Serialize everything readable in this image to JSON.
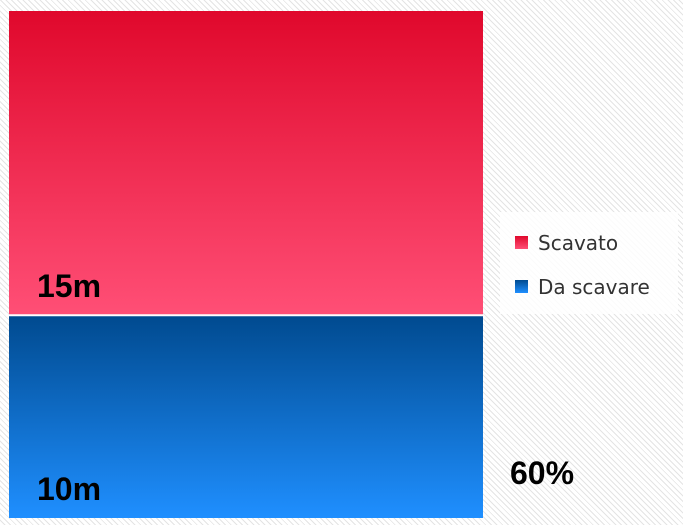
{
  "chart_data": {
    "type": "bar",
    "stacked": true,
    "orientation": "vertical",
    "categories": [
      ""
    ],
    "series": [
      {
        "name": "Scavato",
        "values": [
          15
        ],
        "label": "15m",
        "color_top": "#e0082c",
        "color_bottom": "#ff4f76"
      },
      {
        "name": "Da scavare",
        "values": [
          10
        ],
        "label": "10m",
        "color_top": "#004a8f",
        "color_bottom": "#1f8fff"
      }
    ],
    "total": 25,
    "percent_label": "60%",
    "legend": {
      "placement": "right",
      "items": [
        "Scavato",
        "Da scavare"
      ]
    },
    "grid": false,
    "axes_visible": false
  }
}
